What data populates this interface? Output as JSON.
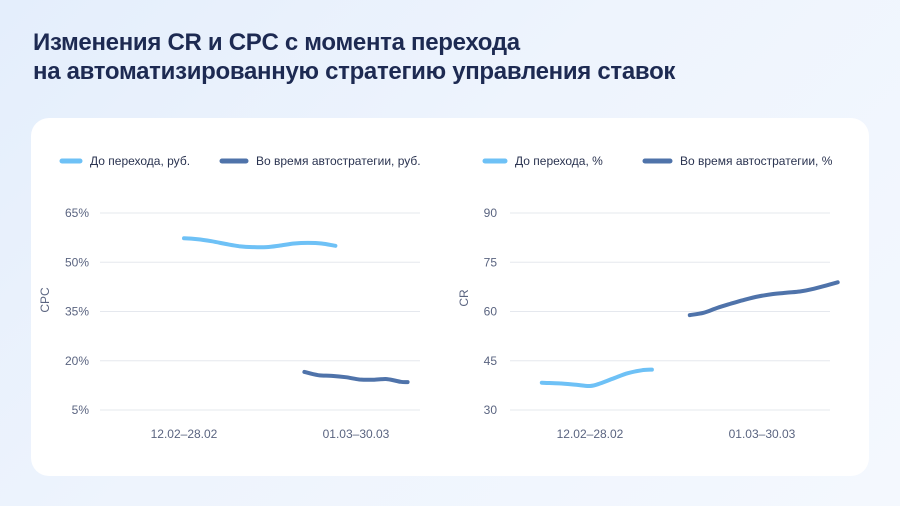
{
  "title": {
    "line1": "Изменения CR и CPC с момента перехода",
    "line2": "на автоматизированную стратегию управления ставок"
  },
  "colors": {
    "before": "#6ec1f6",
    "during": "#4f73aa",
    "grid": "#e5e8ee",
    "title": "#1d2a52"
  },
  "chart_data": [
    {
      "type": "line",
      "ylabel": "CPC",
      "yticks": [
        "65%",
        "50%",
        "35%",
        "20%",
        "5%"
      ],
      "ylim": [
        5,
        65
      ],
      "categories": [
        "12.02–28.02",
        "01.03–30.03"
      ],
      "legend_position": "top",
      "grid": true,
      "series": [
        {
          "name": "До перехода, руб.",
          "color": "#6ec1f6",
          "points": [
            {
              "x": 0,
              "y": 57.3
            },
            {
              "x": 0.08,
              "y": 57.0
            },
            {
              "x": 0.16,
              "y": 56.4
            },
            {
              "x": 0.24,
              "y": 55.6
            },
            {
              "x": 0.32,
              "y": 54.9
            },
            {
              "x": 0.4,
              "y": 54.6
            },
            {
              "x": 0.48,
              "y": 54.6
            },
            {
              "x": 0.56,
              "y": 55.1
            },
            {
              "x": 0.64,
              "y": 55.7
            },
            {
              "x": 0.72,
              "y": 55.9
            },
            {
              "x": 0.8,
              "y": 55.7
            },
            {
              "x": 0.88,
              "y": 55.0
            }
          ]
        },
        {
          "name": "Во время автостратегии, руб.",
          "color": "#4f73aa",
          "points": [
            {
              "x": 0.7,
              "y": 16.6
            },
            {
              "x": 0.78,
              "y": 15.6
            },
            {
              "x": 0.86,
              "y": 15.4
            },
            {
              "x": 0.94,
              "y": 15.0
            },
            {
              "x": 1.02,
              "y": 14.3
            },
            {
              "x": 1.1,
              "y": 14.2
            },
            {
              "x": 1.18,
              "y": 14.4
            },
            {
              "x": 1.26,
              "y": 13.6
            },
            {
              "x": 1.3,
              "y": 13.5
            }
          ]
        }
      ]
    },
    {
      "type": "line",
      "ylabel": "CR",
      "yticks": [
        "90",
        "75",
        "60",
        "45",
        "30"
      ],
      "ylim": [
        30,
        90
      ],
      "categories": [
        "12.02–28.02",
        "01.03–30.03"
      ],
      "legend_position": "top",
      "grid": true,
      "series": [
        {
          "name": "До перехода, %",
          "color": "#6ec1f6",
          "points": [
            {
              "x": -0.28,
              "y": 38.3
            },
            {
              "x": -0.18,
              "y": 38.1
            },
            {
              "x": -0.08,
              "y": 37.7
            },
            {
              "x": 0,
              "y": 37.3
            },
            {
              "x": 0.06,
              "y": 38.1
            },
            {
              "x": 0.14,
              "y": 39.7
            },
            {
              "x": 0.22,
              "y": 41.2
            },
            {
              "x": 0.3,
              "y": 42.1
            },
            {
              "x": 0.36,
              "y": 42.3
            }
          ]
        },
        {
          "name": "Во время автостратегии, %",
          "color": "#4f73aa",
          "points": [
            {
              "x": 0.58,
              "y": 58.9
            },
            {
              "x": 0.66,
              "y": 59.6
            },
            {
              "x": 0.74,
              "y": 61.1
            },
            {
              "x": 0.82,
              "y": 62.4
            },
            {
              "x": 0.9,
              "y": 63.6
            },
            {
              "x": 0.98,
              "y": 64.6
            },
            {
              "x": 1.06,
              "y": 65.3
            },
            {
              "x": 1.14,
              "y": 65.7
            },
            {
              "x": 1.22,
              "y": 66.1
            },
            {
              "x": 1.3,
              "y": 66.9
            },
            {
              "x": 1.38,
              "y": 68.0
            },
            {
              "x": 1.44,
              "y": 68.9
            }
          ]
        }
      ]
    }
  ]
}
